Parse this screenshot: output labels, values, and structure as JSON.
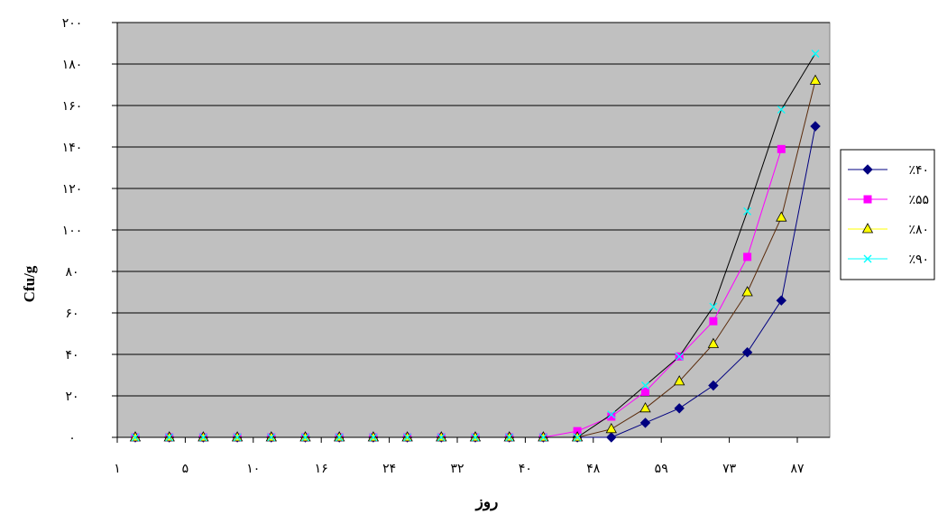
{
  "chart_data": {
    "type": "line",
    "title": "",
    "xlabel": "روز",
    "ylabel": "Cfu/g",
    "x_tick_labels": [
      "۱",
      "۵",
      "۱۰",
      "۱۶",
      "۲۴",
      "۳۲",
      "۴۰",
      "۴۸",
      "۵۹",
      "۷۳",
      "۸۷"
    ],
    "y_tick_labels": [
      "۰",
      "۲۰",
      "۴۰",
      "۶۰",
      "۸۰",
      "۱۰۰",
      "۱۲۰",
      "۱۴۰",
      "۱۶۰",
      "۱۸۰",
      "۲۰۰"
    ],
    "ylim": [
      0,
      200
    ],
    "grid": true,
    "legend_position": "right",
    "plot_background": "#c0c0c0",
    "series": [
      {
        "name": "٪۴۰",
        "color": "#000080",
        "marker": "diamond",
        "values": [
          0,
          0,
          0,
          0,
          0,
          0,
          0,
          0,
          0,
          0,
          0,
          0,
          0,
          0,
          0,
          7,
          14,
          25,
          41,
          66,
          150
        ]
      },
      {
        "name": "٪۵۵",
        "color": "#ff00ff",
        "marker": "square",
        "values": [
          0,
          0,
          0,
          0,
          0,
          0,
          0,
          0,
          0,
          0,
          0,
          0,
          0,
          3,
          10,
          22,
          39,
          56,
          87,
          139
        ]
      },
      {
        "name": "٪۸۰",
        "color": "#ffff00",
        "marker": "triangle",
        "values": [
          0,
          0,
          0,
          0,
          0,
          0,
          0,
          0,
          0,
          0,
          0,
          0,
          0,
          0,
          4,
          14,
          27,
          45,
          70,
          106,
          172
        ]
      },
      {
        "name": "٪۹۰",
        "color": "#00ffff",
        "marker": "x",
        "values": [
          0,
          0,
          0,
          0,
          0,
          0,
          0,
          0,
          0,
          0,
          0,
          0,
          0,
          0,
          11,
          25,
          39,
          63,
          109,
          158,
          185
        ]
      }
    ]
  }
}
